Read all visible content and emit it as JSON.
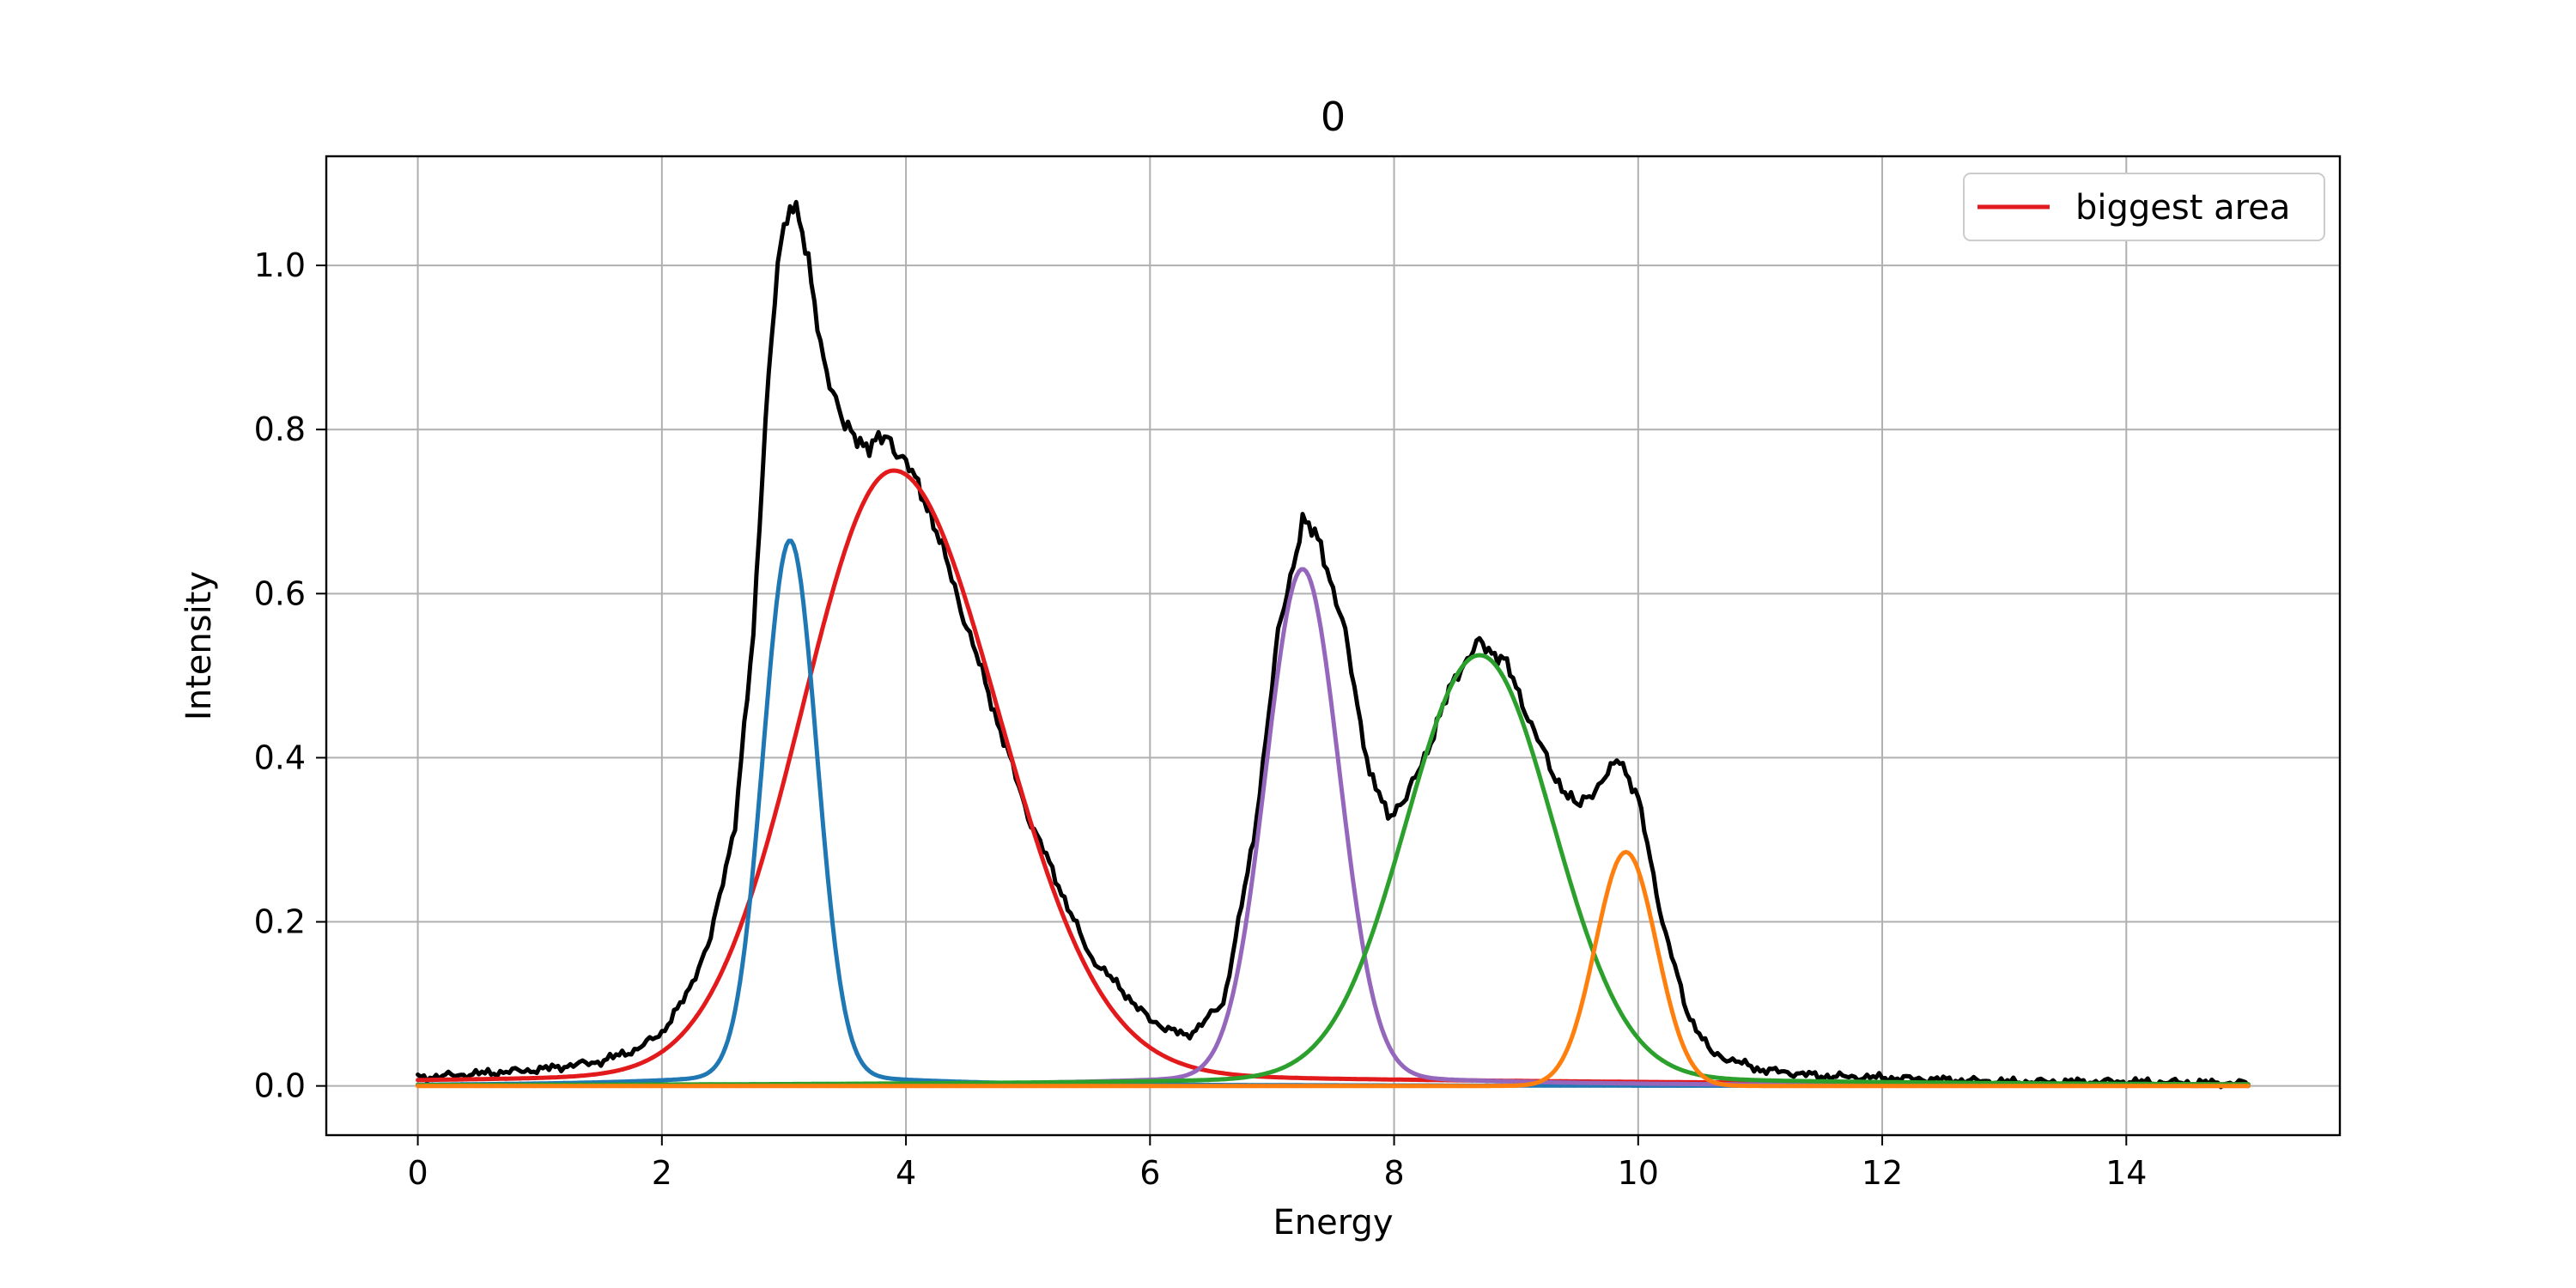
{
  "chart_data": {
    "type": "line",
    "title": "0",
    "xlabel": "Energy",
    "ylabel": "Intensity",
    "xlim": [
      -0.75,
      15.75
    ],
    "ylim": [
      -0.06,
      1.133
    ],
    "xticks": [
      0,
      2,
      4,
      6,
      8,
      10,
      12,
      14
    ],
    "xtick_labels": [
      "0",
      "2",
      "4",
      "6",
      "8",
      "10",
      "12",
      "14"
    ],
    "yticks": [
      0.0,
      0.2,
      0.4,
      0.6,
      0.8,
      1.0
    ],
    "ytick_labels": [
      "0.0",
      "0.2",
      "0.4",
      "0.6",
      "0.8",
      "1.0"
    ],
    "grid": true,
    "legend": {
      "placement": "top-right",
      "entries": [
        {
          "label": "biggest area",
          "color": "#e31a1c"
        }
      ]
    },
    "series": [
      {
        "color": "#000000",
        "style": "noisy-total",
        "x": [
          0,
          0.5,
          1,
          1.5,
          1.8,
          2,
          2.2,
          2.4,
          2.6,
          2.75,
          2.85,
          2.95,
          3.05,
          3.12,
          3.2,
          3.3,
          3.5,
          3.7,
          3.85,
          4,
          4.2,
          4.5,
          5,
          5.5,
          6,
          6.3,
          6.6,
          6.85,
          7.05,
          7.25,
          7.4,
          7.6,
          7.8,
          7.95,
          8.1,
          8.3,
          8.5,
          8.7,
          8.9,
          9.1,
          9.3,
          9.5,
          9.7,
          9.85,
          10,
          10.2,
          10.4,
          10.6,
          11,
          11.5,
          12,
          13,
          14,
          15
        ],
        "y": [
          0.01,
          0.015,
          0.02,
          0.03,
          0.045,
          0.065,
          0.11,
          0.18,
          0.32,
          0.55,
          0.82,
          1.0,
          1.075,
          1.07,
          1.0,
          0.9,
          0.8,
          0.78,
          0.79,
          0.76,
          0.7,
          0.56,
          0.33,
          0.16,
          0.08,
          0.06,
          0.1,
          0.3,
          0.55,
          0.69,
          0.66,
          0.55,
          0.38,
          0.33,
          0.35,
          0.42,
          0.5,
          0.54,
          0.52,
          0.45,
          0.38,
          0.34,
          0.37,
          0.4,
          0.35,
          0.2,
          0.09,
          0.04,
          0.02,
          0.012,
          0.01,
          0.005,
          0.005,
          0.003
        ]
      },
      {
        "color": "#e31a1c",
        "style": "peak",
        "center": 3.9,
        "height": 0.75,
        "width_left": 0.75,
        "width_right": 0.85,
        "tail": 0.02
      },
      {
        "color": "#1f77b4",
        "style": "peak",
        "center": 3.05,
        "height": 0.665,
        "width": 0.22,
        "tail": 0.02
      },
      {
        "color": "#9467bd",
        "style": "peak",
        "center": 7.25,
        "height": 0.63,
        "width": 0.3,
        "tail": 0.02
      },
      {
        "color": "#2ca02c",
        "style": "peak",
        "center": 8.7,
        "height": 0.525,
        "width": 0.6,
        "tail": 0.02
      },
      {
        "color": "#ff7f0e",
        "style": "peak",
        "center": 9.9,
        "height": 0.285,
        "width": 0.25,
        "tail": 0.0
      }
    ]
  }
}
